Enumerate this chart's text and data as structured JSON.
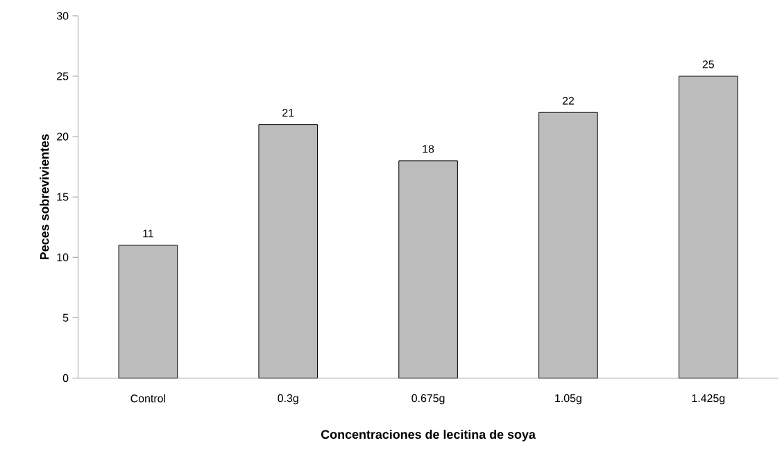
{
  "chart_data": {
    "type": "bar",
    "xlabel": "Concentraciones de lecitina de soya",
    "ylabel": "Peces sobrevivientes",
    "categories": [
      "Control",
      "0.3g",
      "0.675g",
      "1.05g",
      "1.425g"
    ],
    "values": [
      11,
      21,
      18,
      22,
      25
    ],
    "color": "#bcbcbc",
    "ylim": [
      0,
      30
    ],
    "yticks": [
      0,
      5,
      10,
      15,
      20,
      25,
      30
    ],
    "data_labels": true
  }
}
